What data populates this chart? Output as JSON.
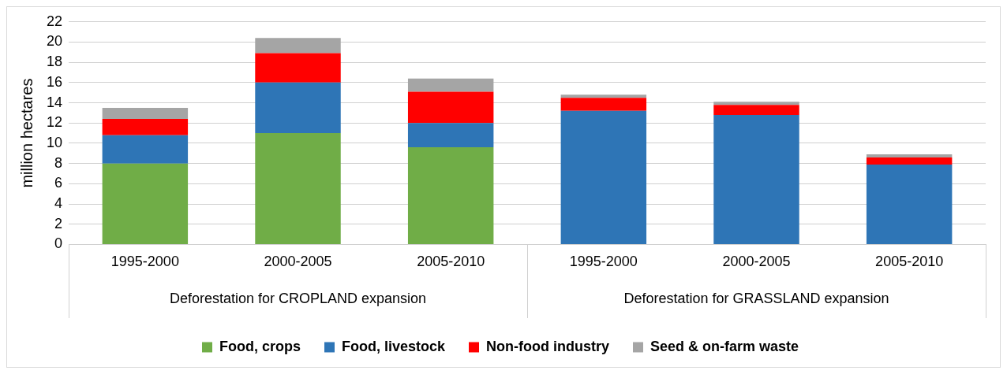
{
  "chart_data": {
    "type": "bar",
    "stacked": true,
    "ylabel": "million hectares",
    "categories": [
      "1995-2000",
      "2000-2005",
      "2005-2010",
      "1995-2000",
      "2000-2005",
      "2005-2010"
    ],
    "annotations": [
      "Deforestation for CROPLAND expansion",
      "Deforestation for GRASSLAND expansion"
    ],
    "series": [
      {
        "name": "Food, crops",
        "color": "#70ad47",
        "values": [
          8.0,
          11.0,
          9.6,
          0,
          0,
          0
        ]
      },
      {
        "name": "Food, livestock",
        "color": "#2e75b6",
        "values": [
          2.8,
          5.0,
          2.4,
          13.2,
          12.8,
          7.9
        ]
      },
      {
        "name": "Non-food industry",
        "color": "#ff0000",
        "values": [
          1.6,
          2.9,
          3.1,
          1.3,
          1.0,
          0.7
        ]
      },
      {
        "name": "Seed & on-farm waste",
        "color": "#a5a5a5",
        "values": [
          1.1,
          1.5,
          1.3,
          0.3,
          0.3,
          0.3
        ]
      }
    ],
    "ylim": [
      0,
      22
    ],
    "yticks": [
      0,
      2,
      4,
      6,
      8,
      10,
      12,
      14,
      16,
      18,
      20,
      22
    ],
    "grid": "y",
    "legend": "bottom"
  }
}
